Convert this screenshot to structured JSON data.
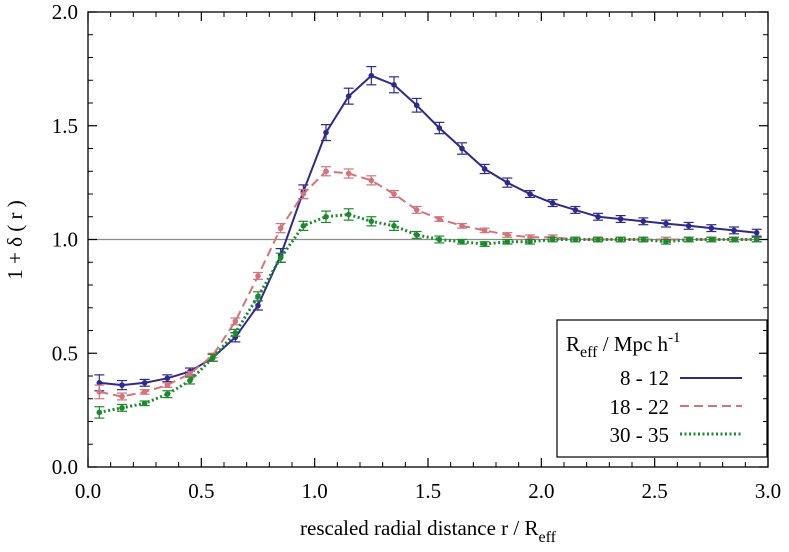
{
  "chart_data": {
    "type": "line",
    "xlabel_prefix": "rescaled radial distance  r / R",
    "xlabel_sub": "eff",
    "ylabel": "1 + δ ( r )",
    "xlim": [
      0.0,
      3.0
    ],
    "ylim": [
      0.0,
      2.0
    ],
    "xticks": [
      "0.0",
      "0.5",
      "1.0",
      "1.5",
      "2.0",
      "2.5",
      "3.0"
    ],
    "yticks": [
      "0.0",
      "0.5",
      "1.0",
      "1.5",
      "2.0"
    ],
    "reference_line_y": 1.0,
    "legend": {
      "title_main": "R",
      "title_sub": "eff",
      "title_rest": " / Mpc h",
      "title_sup": "-1",
      "placement": "bottom-right"
    },
    "x": [
      0.05,
      0.15,
      0.25,
      0.35,
      0.45,
      0.55,
      0.65,
      0.75,
      0.85,
      0.95,
      1.05,
      1.15,
      1.25,
      1.35,
      1.45,
      1.55,
      1.65,
      1.75,
      1.85,
      1.95,
      2.05,
      2.15,
      2.25,
      2.35,
      2.45,
      2.55,
      2.65,
      2.75,
      2.85,
      2.95
    ],
    "series": [
      {
        "name": "8 - 12",
        "color": "#2e2a8c",
        "style": "solid",
        "values": [
          0.37,
          0.36,
          0.37,
          0.39,
          0.42,
          0.48,
          0.57,
          0.71,
          0.93,
          1.21,
          1.47,
          1.63,
          1.72,
          1.68,
          1.59,
          1.49,
          1.4,
          1.31,
          1.25,
          1.2,
          1.16,
          1.13,
          1.1,
          1.09,
          1.08,
          1.07,
          1.06,
          1.05,
          1.04,
          1.03
        ],
        "errors": [
          0.035,
          0.02,
          0.015,
          0.015,
          0.015,
          0.015,
          0.02,
          0.02,
          0.03,
          0.03,
          0.035,
          0.035,
          0.04,
          0.035,
          0.03,
          0.025,
          0.025,
          0.02,
          0.02,
          0.015,
          0.015,
          0.015,
          0.015,
          0.015,
          0.015,
          0.015,
          0.015,
          0.015,
          0.015,
          0.015
        ]
      },
      {
        "name": "18 - 22",
        "color": "#d4737b",
        "style": "dashed",
        "values": [
          0.33,
          0.31,
          0.33,
          0.36,
          0.41,
          0.49,
          0.64,
          0.84,
          1.05,
          1.2,
          1.3,
          1.29,
          1.26,
          1.2,
          1.13,
          1.09,
          1.06,
          1.04,
          1.02,
          1.01,
          1.01,
          1.0,
          1.0,
          1.0,
          1.0,
          1.0,
          1.0,
          1.0,
          1.0,
          1.0
        ],
        "errors": [
          0.03,
          0.015,
          0.01,
          0.01,
          0.01,
          0.01,
          0.015,
          0.015,
          0.02,
          0.02,
          0.02,
          0.02,
          0.02,
          0.015,
          0.015,
          0.01,
          0.01,
          0.01,
          0.01,
          0.01,
          0.01,
          0.01,
          0.01,
          0.01,
          0.01,
          0.01,
          0.01,
          0.01,
          0.01,
          0.01
        ]
      },
      {
        "name": "30 - 35",
        "color": "#1c8a2c",
        "style": "dotted",
        "values": [
          0.24,
          0.26,
          0.28,
          0.32,
          0.38,
          0.48,
          0.59,
          0.75,
          0.92,
          1.06,
          1.1,
          1.11,
          1.08,
          1.06,
          1.02,
          1.0,
          0.99,
          0.98,
          0.99,
          0.99,
          1.0,
          1.0,
          1.0,
          1.0,
          1.0,
          0.99,
          1.0,
          1.0,
          1.0,
          1.0
        ],
        "errors": [
          0.025,
          0.015,
          0.01,
          0.015,
          0.015,
          0.015,
          0.015,
          0.02,
          0.02,
          0.02,
          0.025,
          0.025,
          0.02,
          0.02,
          0.015,
          0.015,
          0.01,
          0.01,
          0.01,
          0.01,
          0.01,
          0.01,
          0.01,
          0.01,
          0.01,
          0.01,
          0.01,
          0.01,
          0.01,
          0.01
        ]
      }
    ]
  }
}
